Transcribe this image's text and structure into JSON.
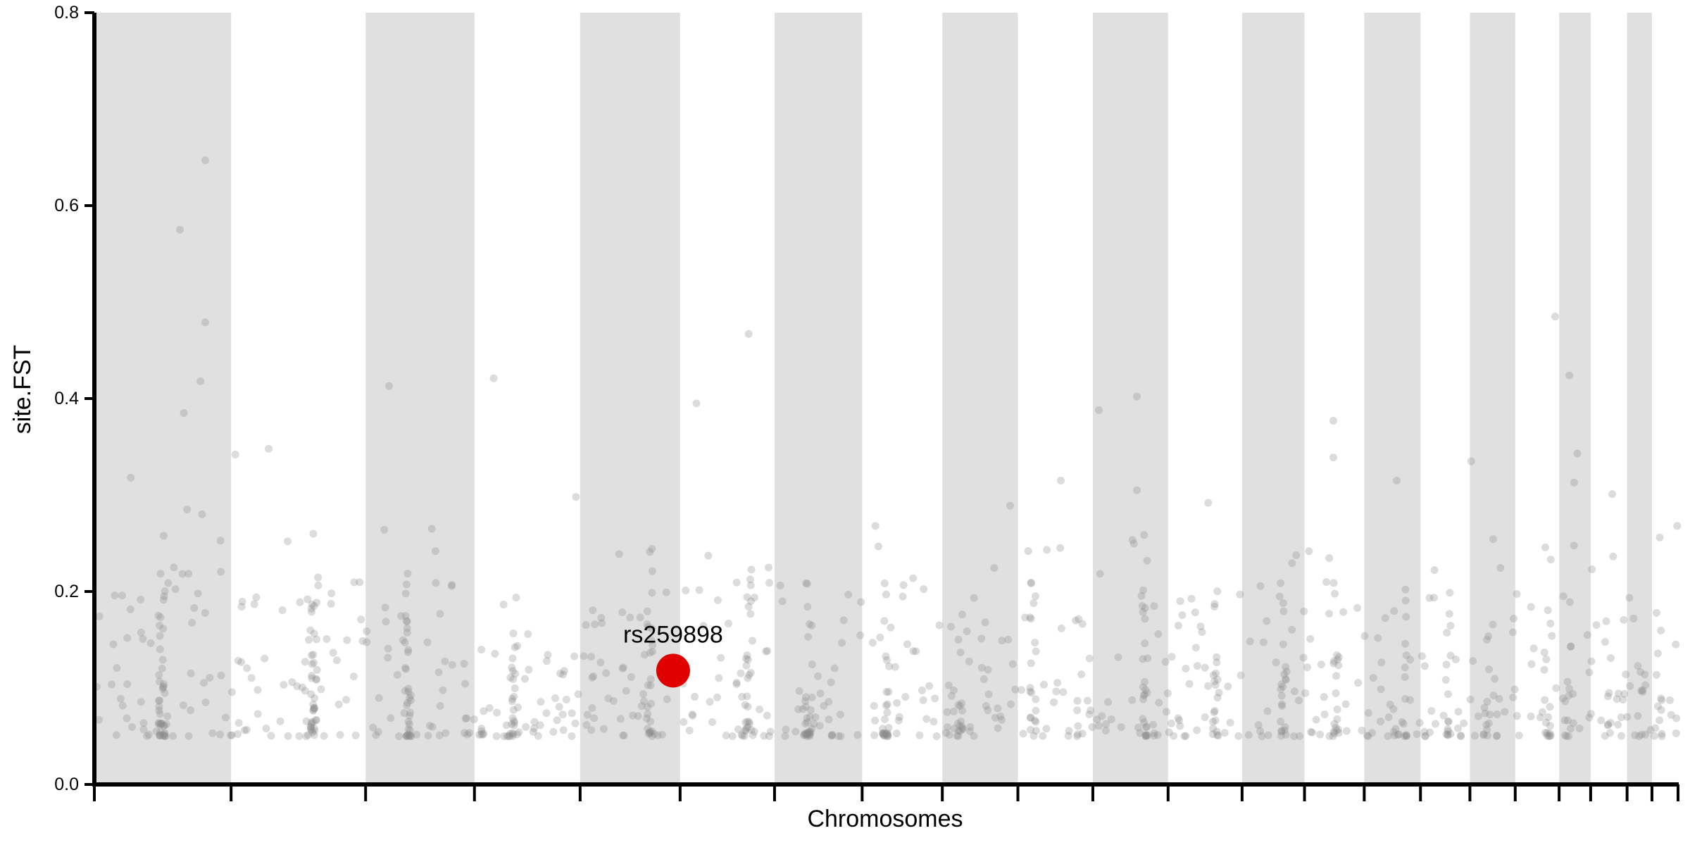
{
  "chart_data": {
    "type": "scatter",
    "title": "",
    "xlabel": "Chromosomes",
    "ylabel": "site.FST",
    "ylim": [
      0,
      0.8
    ],
    "yticks": [
      "0.0",
      "0.2",
      "0.4",
      "0.6",
      "0.8"
    ],
    "grid": false,
    "background_bands": "alternating gray / white chromosome bands",
    "colors": {
      "band": "#e0e0e0",
      "point": "#8c8c8c",
      "highlight": "#e00000",
      "axis": "#000000"
    },
    "chromosome_bands": [
      {
        "gray": true,
        "width": 0.0863
      },
      {
        "gray": false,
        "width": 0.0849
      },
      {
        "gray": true,
        "width": 0.0687
      },
      {
        "gray": false,
        "width": 0.0667
      },
      {
        "gray": true,
        "width": 0.0631
      },
      {
        "gray": false,
        "width": 0.0596
      },
      {
        "gray": true,
        "width": 0.0553
      },
      {
        "gray": false,
        "width": 0.0506
      },
      {
        "gray": true,
        "width": 0.0477
      },
      {
        "gray": false,
        "width": 0.0473
      },
      {
        "gray": true,
        "width": 0.0475
      },
      {
        "gray": false,
        "width": 0.0467
      },
      {
        "gray": true,
        "width": 0.0394
      },
      {
        "gray": false,
        "width": 0.0377
      },
      {
        "gray": true,
        "width": 0.0355
      },
      {
        "gray": false,
        "width": 0.0312
      },
      {
        "gray": true,
        "width": 0.0286
      },
      {
        "gray": false,
        "width": 0.0277
      },
      {
        "gray": true,
        "width": 0.0199
      },
      {
        "gray": false,
        "width": 0.023
      },
      {
        "gray": true,
        "width": 0.0157
      },
      {
        "gray": false,
        "width": 0.0173
      }
    ],
    "notable_points": [
      {
        "x": 0.054,
        "y": 0.575
      },
      {
        "x": 0.0565,
        "y": 0.385
      },
      {
        "x": 0.0585,
        "y": 0.285
      },
      {
        "x": 0.067,
        "y": 0.418
      },
      {
        "x": 0.07,
        "y": 0.647
      },
      {
        "x": 0.07,
        "y": 0.479
      },
      {
        "x": 0.068,
        "y": 0.28
      },
      {
        "x": 0.023,
        "y": 0.318
      },
      {
        "x": 0.089,
        "y": 0.342
      },
      {
        "x": 0.11,
        "y": 0.348
      },
      {
        "x": 0.122,
        "y": 0.252
      },
      {
        "x": 0.183,
        "y": 0.264
      },
      {
        "x": 0.186,
        "y": 0.413
      },
      {
        "x": 0.213,
        "y": 0.265
      },
      {
        "x": 0.252,
        "y": 0.421
      },
      {
        "x": 0.304,
        "y": 0.298
      },
      {
        "x": 0.38,
        "y": 0.395
      },
      {
        "x": 0.413,
        "y": 0.467
      },
      {
        "x": 0.426,
        "y": 0.209
      },
      {
        "x": 0.493,
        "y": 0.268
      },
      {
        "x": 0.578,
        "y": 0.289
      },
      {
        "x": 0.61,
        "y": 0.315
      },
      {
        "x": 0.634,
        "y": 0.388
      },
      {
        "x": 0.658,
        "y": 0.402
      },
      {
        "x": 0.658,
        "y": 0.305
      },
      {
        "x": 0.703,
        "y": 0.292
      },
      {
        "x": 0.782,
        "y": 0.377
      },
      {
        "x": 0.782,
        "y": 0.339
      },
      {
        "x": 0.822,
        "y": 0.315
      },
      {
        "x": 0.869,
        "y": 0.335
      },
      {
        "x": 0.922,
        "y": 0.485
      },
      {
        "x": 0.931,
        "y": 0.424
      },
      {
        "x": 0.936,
        "y": 0.343
      },
      {
        "x": 0.934,
        "y": 0.313
      },
      {
        "x": 0.958,
        "y": 0.301
      },
      {
        "x": 0.999,
        "y": 0.268
      }
    ],
    "highlight": {
      "label": "rs259898",
      "x": 0.3653,
      "y": 0.118
    }
  }
}
